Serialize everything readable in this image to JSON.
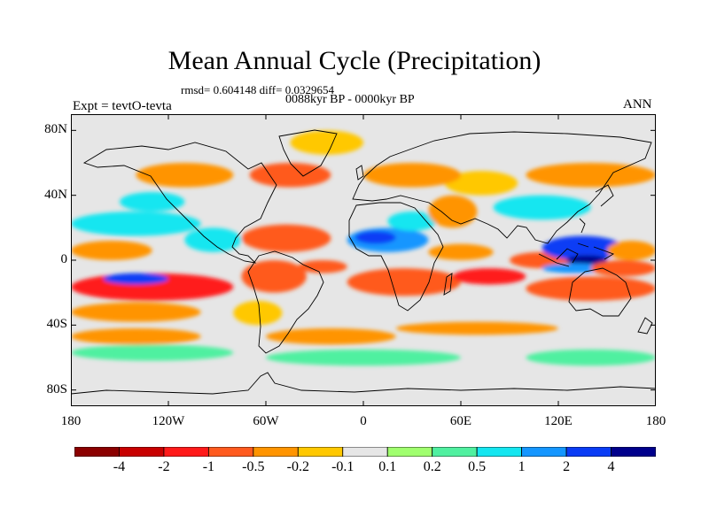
{
  "header": {
    "title": "Mean Annual Cycle (Precipitation)",
    "stats": "rmsd= 0.604148 diff= 0.0329654",
    "period": "0088kyr BP - 0000kyr BP",
    "experiment": "Expt = tevtO-tevta",
    "season": "ANN"
  },
  "map": {
    "projection": "cylindrical-equidistant",
    "lon_range": [
      -180,
      180
    ],
    "lat_range": [
      -90,
      90
    ],
    "lat_ticks": [
      {
        "value": 80,
        "label": "80N"
      },
      {
        "value": 40,
        "label": "40N"
      },
      {
        "value": 0,
        "label": "0"
      },
      {
        "value": -40,
        "label": "40S"
      },
      {
        "value": -80,
        "label": "80S"
      }
    ],
    "lon_ticks": [
      {
        "value": -180,
        "label": "180"
      },
      {
        "value": -120,
        "label": "120W"
      },
      {
        "value": -60,
        "label": "60W"
      },
      {
        "value": 0,
        "label": "0"
      },
      {
        "value": 60,
        "label": "60E"
      },
      {
        "value": 120,
        "label": "120E"
      },
      {
        "value": 180,
        "label": "180"
      }
    ],
    "background_color": "#e6e6e6",
    "coastline_color": "#000000"
  },
  "colorbar": {
    "colors": [
      "#8b0000",
      "#c80000",
      "#ff1a1a",
      "#ff5a1e",
      "#ff9400",
      "#ffc800",
      "#e6e6e6",
      "#a0ff6e",
      "#50f0a0",
      "#14e6f0",
      "#1496ff",
      "#0a3cf5",
      "#00008c"
    ],
    "labels": [
      "-4",
      "-2",
      "-1",
      "-0.5",
      "-0.2",
      "-0.1",
      "0.1",
      "0.2",
      "0.5",
      "1",
      "2",
      "4"
    ]
  },
  "chart_data": {
    "type": "heatmap",
    "title": "Mean Annual Cycle (Precipitation)",
    "subtitle": "0088kyr BP - 0000kyr BP",
    "levels": [
      -4,
      -2,
      -1,
      -0.5,
      -0.2,
      -0.1,
      0.1,
      0.2,
      0.5,
      1,
      2,
      4
    ],
    "regions": [
      {
        "lon": [
          -180,
          -80
        ],
        "lat": [
          -25,
          -8
        ],
        "value": -2
      },
      {
        "lon": [
          -160,
          -120
        ],
        "lat": [
          -15,
          -8
        ],
        "value": 2
      },
      {
        "lon": [
          -75,
          -35
        ],
        "lat": [
          -20,
          0
        ],
        "value": -1
      },
      {
        "lon": [
          -180,
          -100
        ],
        "lat": [
          -38,
          -26
        ],
        "value": -0.5
      },
      {
        "lon": [
          -80,
          -50
        ],
        "lat": [
          -40,
          -25
        ],
        "value": -0.2
      },
      {
        "lon": [
          -40,
          -10
        ],
        "lat": [
          -8,
          0
        ],
        "value": -1
      },
      {
        "lon": [
          -10,
          60
        ],
        "lat": [
          -22,
          -5
        ],
        "value": -1
      },
      {
        "lon": [
          -180,
          -130
        ],
        "lat": [
          0,
          12
        ],
        "value": -0.5
      },
      {
        "lon": [
          -180,
          -100
        ],
        "lat": [
          15,
          30
        ],
        "value": 0.5
      },
      {
        "lon": [
          -150,
          -110
        ],
        "lat": [
          30,
          42
        ],
        "value": 0.5
      },
      {
        "lon": [
          -110,
          -75
        ],
        "lat": [
          5,
          20
        ],
        "value": 0.5
      },
      {
        "lon": [
          -75,
          -20
        ],
        "lat": [
          5,
          22
        ],
        "value": -1
      },
      {
        "lon": [
          -140,
          -80
        ],
        "lat": [
          45,
          60
        ],
        "value": -0.5
      },
      {
        "lon": [
          -70,
          -20
        ],
        "lat": [
          45,
          60
        ],
        "value": -1
      },
      {
        "lon": [
          -45,
          0
        ],
        "lat": [
          65,
          80
        ],
        "value": -0.2
      },
      {
        "lon": [
          -10,
          40
        ],
        "lat": [
          5,
          20
        ],
        "value": 1
      },
      {
        "lon": [
          -5,
          20
        ],
        "lat": [
          10,
          18
        ],
        "value": 2
      },
      {
        "lon": [
          15,
          45
        ],
        "lat": [
          18,
          30
        ],
        "value": 0.5
      },
      {
        "lon": [
          40,
          70
        ],
        "lat": [
          20,
          40
        ],
        "value": -0.5
      },
      {
        "lon": [
          50,
          95
        ],
        "lat": [
          40,
          55
        ],
        "value": -0.2
      },
      {
        "lon": [
          0,
          60
        ],
        "lat": [
          45,
          60
        ],
        "value": -0.5
      },
      {
        "lon": [
          40,
          80
        ],
        "lat": [
          0,
          10
        ],
        "value": -0.5
      },
      {
        "lon": [
          55,
          100
        ],
        "lat": [
          -15,
          -5
        ],
        "value": -2
      },
      {
        "lon": [
          90,
          130
        ],
        "lat": [
          -5,
          5
        ],
        "value": -1
      },
      {
        "lon": [
          110,
          160
        ],
        "lat": [
          0,
          15
        ],
        "value": 2
      },
      {
        "lon": [
          125,
          150
        ],
        "lat": [
          -3,
          3
        ],
        "value": 4
      },
      {
        "lon": [
          150,
          180
        ],
        "lat": [
          0,
          12
        ],
        "value": -0.5
      },
      {
        "lon": [
          110,
          150
        ],
        "lat": [
          -8,
          -2
        ],
        "value": 1
      },
      {
        "lon": [
          100,
          180
        ],
        "lat": [
          -25,
          -10
        ],
        "value": -1
      },
      {
        "lon": [
          140,
          180
        ],
        "lat": [
          -10,
          0
        ],
        "value": -1
      },
      {
        "lon": [
          80,
          140
        ],
        "lat": [
          25,
          40
        ],
        "value": 0.5
      },
      {
        "lon": [
          100,
          180
        ],
        "lat": [
          45,
          60
        ],
        "value": -0.5
      },
      {
        "lon": [
          -180,
          -100
        ],
        "lat": [
          -52,
          -42
        ],
        "value": -0.5
      },
      {
        "lon": [
          -60,
          20
        ],
        "lat": [
          -52,
          -42
        ],
        "value": -0.5
      },
      {
        "lon": [
          20,
          120
        ],
        "lat": [
          -46,
          -38
        ],
        "value": -0.5
      },
      {
        "lon": [
          -180,
          -80
        ],
        "lat": [
          -62,
          -52
        ],
        "value": 0.2
      },
      {
        "lon": [
          -60,
          60
        ],
        "lat": [
          -65,
          -55
        ],
        "value": 0.2
      },
      {
        "lon": [
          100,
          180
        ],
        "lat": [
          -65,
          -55
        ],
        "value": 0.2
      }
    ]
  }
}
